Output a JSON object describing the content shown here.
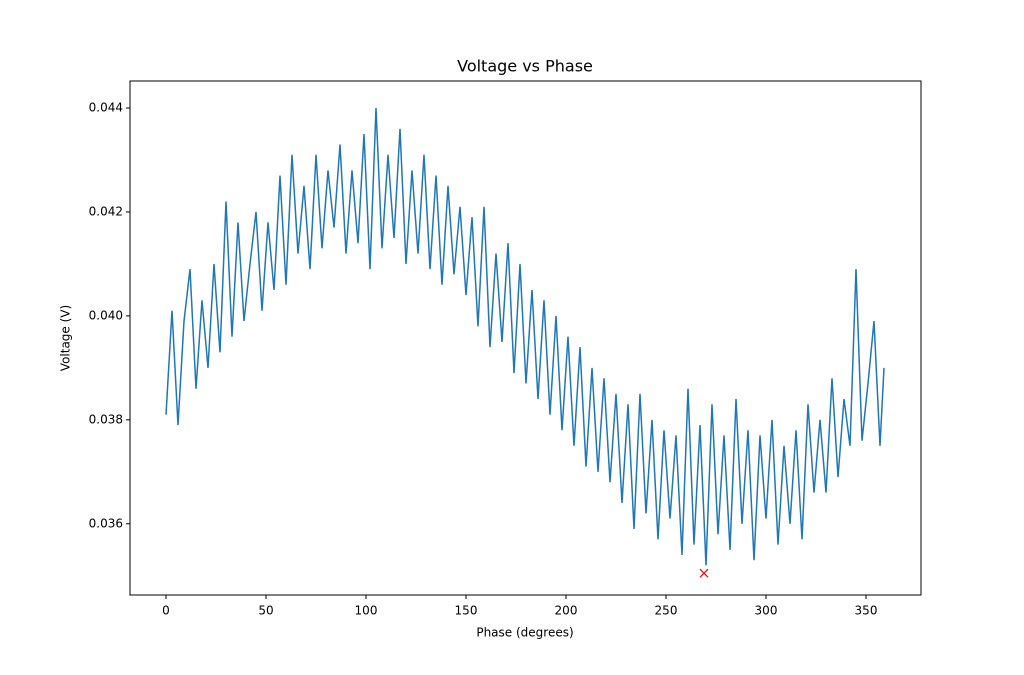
{
  "chart_data": {
    "type": "line",
    "title": "Voltage vs Phase",
    "x_label": "Phase (degrees)",
    "y_label": "Voltage (V)",
    "xlim": [
      -18,
      377.5
    ],
    "ylim": [
      0.03463,
      0.04452
    ],
    "xticks": [
      0,
      50,
      100,
      150,
      200,
      250,
      300,
      350
    ],
    "yticks": [
      0.036,
      0.038,
      {
        "value": 0.04,
        "label": "0.040"
      },
      0.042,
      0.044
    ],
    "series": [
      {
        "color": "#1f77b4",
        "marker": "none",
        "x": [
          0,
          3,
          6,
          9,
          12,
          15,
          18,
          21,
          24,
          27,
          30,
          33,
          36,
          39,
          42,
          45,
          48,
          51,
          54,
          57,
          60,
          63,
          66,
          69,
          72,
          75,
          78,
          81,
          84,
          87,
          90,
          93,
          96,
          99,
          102,
          105,
          108,
          111,
          114,
          117,
          120,
          123,
          126,
          129,
          132,
          135,
          138,
          141,
          144,
          147,
          150,
          153,
          156,
          159,
          162,
          165,
          168,
          171,
          174,
          177,
          180,
          183,
          186,
          189,
          192,
          195,
          198,
          201,
          204,
          207,
          210,
          213,
          216,
          219,
          222,
          225,
          228,
          231,
          234,
          237,
          240,
          243,
          246,
          249,
          252,
          255,
          258,
          261,
          264,
          267,
          270,
          273,
          276,
          279,
          282,
          285,
          288,
          291,
          294,
          297,
          300,
          303,
          306,
          309,
          312,
          315,
          318,
          321,
          324,
          327,
          330,
          333,
          336,
          339,
          342,
          345,
          348,
          351,
          354,
          357,
          359
        ],
        "values": [
          0.0381,
          0.0401,
          0.0379,
          0.0399,
          0.0409,
          0.0386,
          0.0403,
          0.039,
          0.041,
          0.0393,
          0.0422,
          0.0396,
          0.0418,
          0.0399,
          0.041,
          0.042,
          0.0401,
          0.0418,
          0.0405,
          0.0427,
          0.0406,
          0.0431,
          0.0412,
          0.0425,
          0.0409,
          0.0431,
          0.0413,
          0.0428,
          0.0417,
          0.0433,
          0.0412,
          0.0428,
          0.0414,
          0.0435,
          0.0409,
          0.044,
          0.0413,
          0.0431,
          0.0415,
          0.0436,
          0.041,
          0.0428,
          0.0412,
          0.0431,
          0.0409,
          0.0427,
          0.0406,
          0.0425,
          0.0408,
          0.0421,
          0.0404,
          0.0419,
          0.0398,
          0.0421,
          0.0394,
          0.0412,
          0.0395,
          0.0414,
          0.0389,
          0.041,
          0.0387,
          0.0405,
          0.0384,
          0.0403,
          0.0381,
          0.04,
          0.0378,
          0.0396,
          0.0375,
          0.0394,
          0.0371,
          0.039,
          0.037,
          0.0388,
          0.0368,
          0.0385,
          0.0364,
          0.0383,
          0.0359,
          0.0385,
          0.0362,
          0.038,
          0.0357,
          0.0378,
          0.0361,
          0.0377,
          0.0354,
          0.0386,
          0.0356,
          0.0379,
          0.0352,
          0.0383,
          0.0358,
          0.0377,
          0.0355,
          0.0384,
          0.036,
          0.0378,
          0.0353,
          0.0377,
          0.0361,
          0.038,
          0.0356,
          0.0375,
          0.036,
          0.0378,
          0.0357,
          0.0383,
          0.0366,
          0.038,
          0.0366,
          0.0388,
          0.0369,
          0.0384,
          0.0375,
          0.0409,
          0.0376,
          0.0387,
          0.0399,
          0.0375,
          0.039
        ]
      },
      {
        "color": "#ff0000",
        "marker": "x",
        "x": [
          269
        ],
        "values": [
          0.03505
        ]
      }
    ]
  }
}
